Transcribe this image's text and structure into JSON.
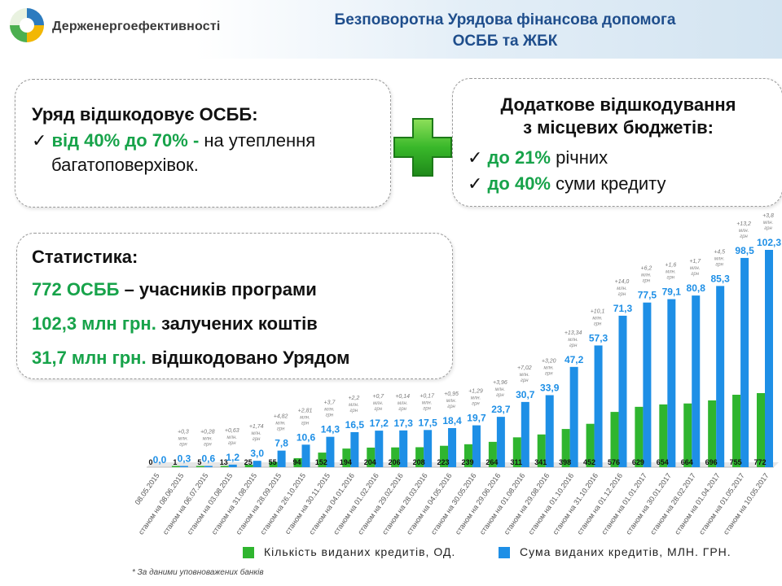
{
  "header": {
    "org_name": "Держенергоефективності",
    "title_line1": "Безповоротна Урядова фінансова допомога",
    "title_line2": "ОСББ та ЖБК"
  },
  "box1": {
    "heading": "Уряд відшкодовує ОСББ:",
    "check": "✓",
    "highlight": "від 40% до 70% -",
    "text1": " на утеплення",
    "text2": "багатоповерхівок."
  },
  "box2": {
    "heading_line1": "Додаткове відшкодування",
    "heading_line2": "з місцевих бюджетів:",
    "check": "✓",
    "item1_highlight": "до 21%",
    "item1_text": " річних",
    "item2_highlight": "до 40%",
    "item2_text": " суми кредиту"
  },
  "box3": {
    "heading": "Статистика:",
    "items": [
      {
        "highlight": "772 ОСББ",
        "text": " – учасників програми"
      },
      {
        "highlight": "102,3 млн грн.",
        "text": " залучених коштів"
      },
      {
        "highlight": "31,7 млн грн.",
        "text": " відшкодовано Урядом"
      }
    ]
  },
  "colors": {
    "green": "#2fb52f",
    "blue": "#1e8fe6",
    "title": "#1f4e8c",
    "accent_text": "#17a34a"
  },
  "chart_data": {
    "type": "bar",
    "categories": [
      "08.05.2015",
      "станом на 08.06.2015",
      "станом на 06.07.2015",
      "станом на 03.08.2015",
      "станом на 31.08.2015",
      "станом на 28.09.2015",
      "станом на 26.10.2015",
      "станом на 30.11.2015",
      "станом на 04.01.2016",
      "станом на 01.02.2016",
      "станом на 29.02.2016",
      "станом на 28.03.2016",
      "станом на 04.05.2016",
      "станом на 30.05.2016",
      "станом на 29.06.2016",
      "станом на 01.08.2016",
      "станом на 29.08.2016",
      "станом на 01.10.2016",
      "станом на 31.10.2016",
      "станом на 01.12.2016",
      "станом на 01.01.2017",
      "станом на 30.01.2017",
      "станом на 28.02.2017",
      "станом на 01.04.2017",
      "станом на 01.05.2017",
      "станом на 10.05.2017"
    ],
    "series": [
      {
        "name": "Кількість виданих кредитів, ОД.",
        "values": [
          0,
          1,
          5,
          13,
          25,
          55,
          94,
          152,
          194,
          204,
          206,
          208,
          223,
          239,
          264,
          311,
          341,
          398,
          452,
          576,
          629,
          654,
          664,
          696,
          755,
          772
        ],
        "labels": [
          "0",
          "1",
          "5",
          "13",
          "25",
          "55",
          "94",
          "152",
          "194",
          "204",
          "206",
          "208",
          "223",
          "239",
          "264",
          "311",
          "341",
          "398",
          "452",
          "576",
          "629",
          "654",
          "664",
          "696",
          "755",
          "772"
        ]
      },
      {
        "name": "Сума виданих кредитів, МЛН. ГРН.",
        "values": [
          0.0,
          0.3,
          0.6,
          1.2,
          3.0,
          7.8,
          10.6,
          14.3,
          16.5,
          17.2,
          17.3,
          17.5,
          18.4,
          19.7,
          23.7,
          30.7,
          33.9,
          47.2,
          57.3,
          71.3,
          77.5,
          79.1,
          80.8,
          85.3,
          98.5,
          102.3
        ],
        "labels": [
          "0,0",
          "0,3",
          "0,6",
          "1,2",
          "3,0",
          "7,8",
          "10,6",
          "14,3",
          "16,5",
          "17,2",
          "17,3",
          "17,5",
          "18,4",
          "19,7",
          "23,7",
          "30,7",
          "33,9",
          "47,2",
          "57,3",
          "71,3",
          "77,5",
          "79,1",
          "80,8",
          "85,3",
          "98,5",
          "102,3"
        ]
      }
    ],
    "increments": [
      "",
      "+0,3",
      "+0,28",
      "+0,63",
      "+1,74",
      "+4,82",
      "+2,81",
      "+3,7",
      "+2,2",
      "+0,7",
      "+0,14",
      "+0,17",
      "+0,95",
      "+1,29",
      "+3,96",
      "+7,02",
      "+3,20",
      "+13,34",
      "+10,1",
      "+14,0",
      "+6,2",
      "+1,6",
      "+1,7",
      "+4,5",
      "+13,2",
      "+3,8"
    ],
    "increment_unit_line1": "млн.",
    "increment_unit_line2": "грн",
    "legend": [
      "Кількість виданих кредитів, ОД.",
      "Сума виданих кредитів, МЛН. ГРН."
    ],
    "legend_position": "bottom",
    "footnote": "* За даними уповноважених банків"
  }
}
